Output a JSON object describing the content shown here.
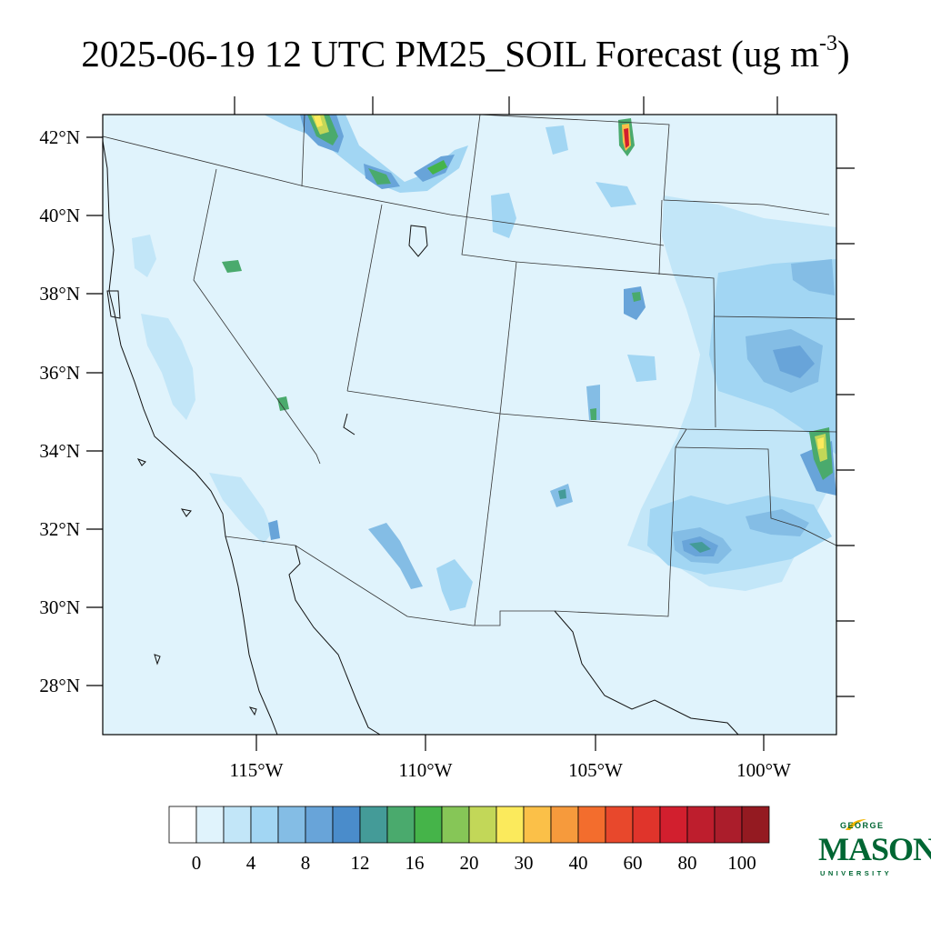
{
  "title": {
    "text": "2025-06-19 12 UTC PM25_SOIL Forecast (ug m",
    "superscript": "-3",
    "close": ")"
  },
  "map": {
    "lat_labels": [
      "42°N",
      "40°N",
      "38°N",
      "36°N",
      "34°N",
      "32°N",
      "30°N",
      "28°N"
    ],
    "lon_labels": [
      "115°W",
      "110°W",
      "105°W",
      "100°W"
    ],
    "background_color": "#e0f3fc"
  },
  "colorbar": {
    "colors": [
      "#ffffff",
      "#e0f3fc",
      "#c2e6f8",
      "#a2d6f3",
      "#84bde5",
      "#68a4d9",
      "#4a8ccb",
      "#449b98",
      "#4aaa6d",
      "#45b449",
      "#86c657",
      "#c2d758",
      "#fbea5c",
      "#fbc048",
      "#f69a3c",
      "#f36d2d",
      "#e8482c",
      "#e0342b",
      "#d21f2e",
      "#be1e2d",
      "#ab1d2b",
      "#941a21"
    ],
    "labels": [
      "0",
      "4",
      "8",
      "12",
      "16",
      "20",
      "30",
      "40",
      "60",
      "80",
      "100"
    ]
  },
  "logo": {
    "line1": "GEORGE",
    "line2": "MASON",
    "line3": "UNIVERSITY",
    "color": "#006633",
    "accent": "#f2b500"
  }
}
